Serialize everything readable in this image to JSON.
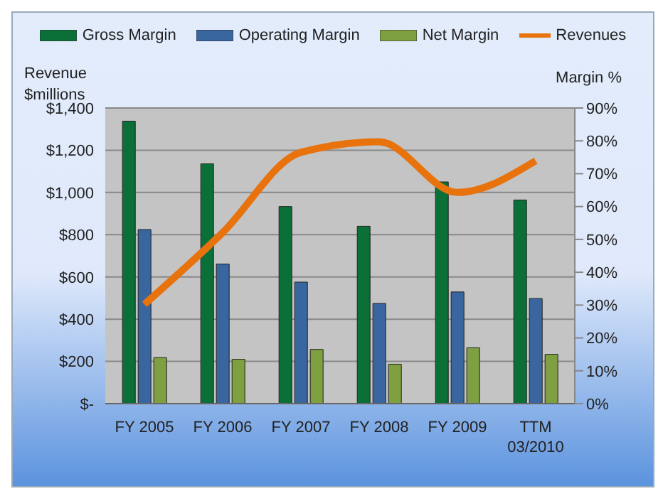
{
  "chart_data": {
    "type": "bar",
    "categories": [
      "FY 2005",
      "FY 2006",
      "FY 2007",
      "FY 2008",
      "FY 2009",
      "TTM 03/2010"
    ],
    "ylabel": "Revenue $millions",
    "y2label": "Margin %",
    "series": [
      {
        "name": "Gross Margin",
        "color": "#0a7038",
        "axis": "y2",
        "values": [
          86,
          73,
          60,
          54,
          67.5,
          62
        ]
      },
      {
        "name": "Operating Margin",
        "color": "#3a66a0",
        "axis": "y2",
        "values": [
          53,
          42.5,
          37,
          30.5,
          34,
          32
        ]
      },
      {
        "name": "Net Margin",
        "color": "#7ea040",
        "axis": "y2",
        "values": [
          14,
          13.5,
          16.5,
          12,
          17,
          15
        ]
      },
      {
        "name": "Revenues",
        "type": "line",
        "color": "#e8720c",
        "axis": "y",
        "values": [
          470,
          810,
          1190,
          1240,
          1000,
          1150
        ]
      }
    ],
    "ylim": [
      0,
      1400
    ],
    "yticks": [
      {
        "value": 0,
        "label": "$-"
      },
      {
        "value": 200,
        "label": "$200"
      },
      {
        "value": 400,
        "label": "$400"
      },
      {
        "value": 600,
        "label": "$600"
      },
      {
        "value": 800,
        "label": "$800"
      },
      {
        "value": 1000,
        "label": "$1,000"
      },
      {
        "value": 1200,
        "label": "$1,200"
      },
      {
        "value": 1400,
        "label": "$1,400"
      }
    ],
    "y2lim": [
      0,
      90
    ],
    "y2ticks": [
      {
        "value": 0,
        "label": "0%"
      },
      {
        "value": 10,
        "label": "10%"
      },
      {
        "value": 20,
        "label": "20%"
      },
      {
        "value": 30,
        "label": "30%"
      },
      {
        "value": 40,
        "label": "40%"
      },
      {
        "value": 50,
        "label": "50%"
      },
      {
        "value": 60,
        "label": "60%"
      },
      {
        "value": 70,
        "label": "70%"
      },
      {
        "value": 80,
        "label": "80%"
      },
      {
        "value": 90,
        "label": "90%"
      }
    ],
    "grid": "y",
    "legend": "top",
    "marker": "none"
  }
}
